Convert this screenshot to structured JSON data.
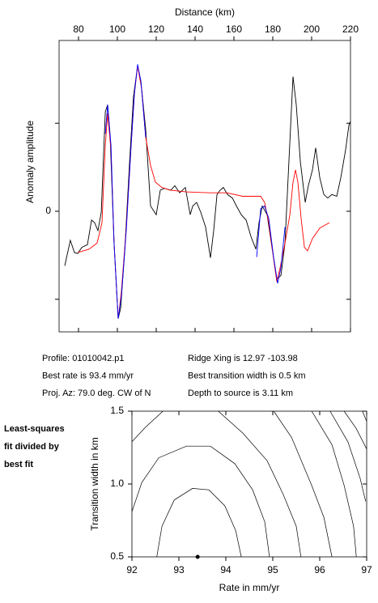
{
  "chart_data": [
    {
      "type": "line",
      "xlabel": "Distance (km)",
      "ylabel": "Anomaly amplitude",
      "xlim": [
        70,
        220
      ],
      "xticks": [
        80,
        100,
        120,
        140,
        160,
        180,
        200,
        220
      ],
      "ylim": [
        -1.37,
        1.94
      ],
      "yticks": [
        0
      ],
      "minor_yticks": [
        -1,
        1
      ],
      "x_axis_position": "top",
      "series": [
        {
          "color": "#000000",
          "x": [
            72.9,
            75.8,
            77.9,
            79.6,
            81.7,
            84.6,
            86.7,
            88.3,
            90.0,
            91.7,
            93.8,
            95.0,
            96.3,
            98.3,
            100.4,
            101.7,
            103.8,
            106.3,
            108.3,
            110.4,
            112.1,
            114.6,
            117.1,
            120.0,
            122.1,
            124.2,
            127.5,
            129.6,
            132.1,
            135.0,
            137.5,
            138.8,
            140.8,
            142.9,
            145.4,
            147.9,
            149.6,
            151.3,
            152.9,
            154.6,
            156.7,
            159.2,
            161.3,
            163.8,
            166.3,
            168.8,
            171.3,
            172.9,
            174.6,
            177.1,
            179.6,
            182.1,
            184.2,
            186.3,
            188.3,
            190.4,
            192.1,
            194.2,
            196.7,
            198.3,
            200.4,
            202.1,
            204.2,
            206.3,
            208.3,
            210.4,
            212.9,
            215.0,
            217.5,
            219.2,
            220.0
          ],
          "values": [
            -0.62,
            -0.33,
            -0.47,
            -0.48,
            -0.41,
            -0.38,
            -0.1,
            -0.13,
            -0.22,
            -0.01,
            1.13,
            1.21,
            0.84,
            -0.36,
            -1.22,
            -1.1,
            -0.45,
            0.56,
            1.3,
            1.65,
            1.48,
            0.93,
            0.06,
            -0.04,
            0.24,
            0.26,
            0.24,
            0.29,
            0.21,
            0.27,
            -0.04,
            0.06,
            0.1,
            -0.01,
            -0.18,
            -0.53,
            -0.22,
            0.19,
            0.24,
            0.27,
            0.19,
            0.15,
            0.06,
            -0.04,
            -0.1,
            -0.29,
            -0.43,
            -0.13,
            0.06,
            -0.04,
            -0.41,
            -0.77,
            -0.73,
            -0.36,
            0.56,
            1.53,
            1.21,
            0.56,
            0.1,
            0.29,
            0.47,
            0.72,
            0.38,
            0.19,
            0.15,
            0.19,
            0.17,
            0.38,
            0.7,
            0.98,
            1.02
          ]
        },
        {
          "color": "#ff0000",
          "x": [
            79.6,
            85.4,
            89.6,
            92.1,
            93.8,
            95.0,
            96.7,
            98.3,
            100.4,
            102.1,
            104.6,
            107.1,
            108.8,
            110.4,
            112.5,
            114.6,
            117.1,
            119.6,
            122.9,
            127.1,
            135.4,
            147.9,
            156.3,
            164.6,
            170.8,
            173.8,
            175.8,
            177.9,
            180.4,
            182.1,
            183.8,
            186.3,
            188.8,
            190.4,
            191.7,
            192.9,
            194.6,
            196.3,
            197.9,
            200.4,
            204.2,
            209.2
          ],
          "values": [
            -0.47,
            -0.43,
            -0.36,
            -0.13,
            0.75,
            1.11,
            0.7,
            -0.36,
            -1.22,
            -0.91,
            -0.18,
            0.75,
            1.34,
            1.65,
            1.39,
            0.84,
            0.52,
            0.33,
            0.27,
            0.24,
            0.22,
            0.21,
            0.21,
            0.17,
            0.17,
            0.17,
            0.1,
            -0.13,
            -0.54,
            -0.8,
            -0.64,
            -0.36,
            -0.04,
            0.33,
            0.47,
            0.33,
            -0.08,
            -0.41,
            -0.45,
            -0.31,
            -0.19,
            -0.13
          ]
        },
        {
          "color": "#0000ff",
          "x": [
            93.8,
            95.0,
            96.7,
            98.3,
            100.4,
            102.1,
            104.6,
            107.1,
            108.8,
            110.4,
            112.1,
            114.6,
            140,
            171.7,
            173.8,
            175.8,
            177.9,
            180.4,
            182.5,
            184.2,
            186.3
          ],
          "values": [
            0.88,
            1.21,
            0.75,
            -0.36,
            -1.22,
            -0.96,
            -0.22,
            0.75,
            1.34,
            1.67,
            1.48,
            0.84,
            null,
            -0.52,
            0.03,
            0.06,
            -0.08,
            -0.52,
            -0.82,
            -0.64,
            -0.18
          ]
        }
      ]
    },
    {
      "type": "contour",
      "xlabel": "Rate in mm/yr",
      "ylabel": "Transition width in km",
      "xlim": [
        92,
        97
      ],
      "xticks": [
        92,
        93,
        94,
        95,
        96,
        97
      ],
      "ylim": [
        0.5,
        1.5
      ],
      "yticks": [
        {
          "value": 0.5,
          "label": "0.5"
        },
        {
          "value": 1.0,
          "label": "1.0"
        },
        {
          "value": 1.5,
          "label": "1.5"
        }
      ],
      "color": "#000000",
      "point": {
        "x": 93.4,
        "y": 0.5
      },
      "lines": [
        {
          "x": [
            92.53,
            92.64,
            92.9,
            93.29,
            93.64,
            93.98,
            94.21,
            94.33
          ],
          "y": [
            0.5,
            0.71,
            0.89,
            0.97,
            0.96,
            0.85,
            0.68,
            0.5
          ]
        },
        {
          "x": [
            92.0,
            92.21,
            92.57,
            93.16,
            93.67,
            94.19,
            94.57,
            94.83,
            94.93
          ],
          "y": [
            0.81,
            1.01,
            1.18,
            1.26,
            1.26,
            1.14,
            0.96,
            0.74,
            0.5
          ]
        },
        {
          "x": [
            92.0,
            92.29,
            92.66,
            93.2,
            93.84,
            94.36,
            94.88,
            95.22,
            95.5,
            95.6
          ],
          "y": [
            1.29,
            1.39,
            1.5,
            null,
            1.5,
            1.35,
            1.16,
            0.93,
            0.71,
            0.5
          ]
        },
        {
          "x": [
            95.02,
            95.4,
            95.83,
            96.09,
            96.26
          ],
          "y": [
            1.5,
            1.32,
            0.99,
            0.77,
            0.5
          ]
        },
        {
          "x": [
            95.83,
            96.26,
            96.52,
            96.72,
            96.78
          ],
          "y": [
            1.5,
            1.27,
            0.99,
            0.71,
            0.5
          ]
        },
        {
          "x": [
            96.22,
            96.6,
            96.86,
            96.98
          ],
          "y": [
            1.5,
            1.29,
            1.04,
            0.88
          ]
        },
        {
          "x": [
            96.52,
            96.78,
            97.0
          ],
          "y": [
            1.5,
            1.38,
            1.24
          ]
        },
        {
          "x": [
            96.91,
            97.0
          ],
          "y": [
            1.5,
            1.43
          ]
        }
      ]
    }
  ],
  "profile_info": [
    [
      "Profile: 01010042.p1",
      "Ridge Xing is 12.97 -103.98"
    ],
    [
      "Best rate is 93.4 mm/yr",
      "Best transition width is 0.5 km"
    ],
    [
      "Proj. Az: 79.0 deg. CW of N",
      "Depth to source is   3.11 km"
    ]
  ],
  "side_note": [
    "Least-squares",
    "fit divided by",
    "best fit"
  ]
}
